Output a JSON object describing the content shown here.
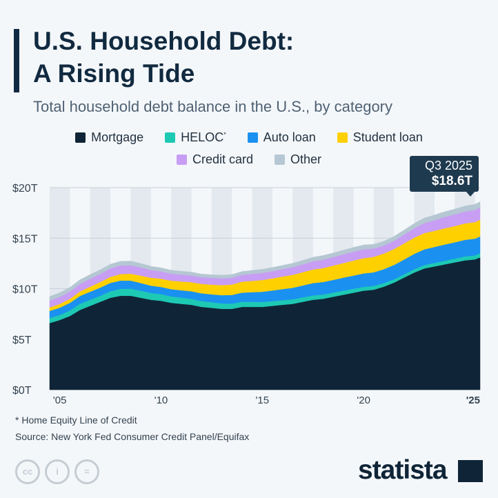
{
  "header": {
    "title_line1": "U.S. Household Debt:",
    "title_line2": "A Rising Tide",
    "subtitle": "Total household debt balance in the U.S., by category"
  },
  "legend": [
    {
      "label": "Mortgage",
      "color": "#0f2537"
    },
    {
      "label": "HELOC",
      "sup": "*",
      "color": "#1ec9b4"
    },
    {
      "label": "Auto loan",
      "color": "#1a91f0"
    },
    {
      "label": "Student loan",
      "color": "#fed000"
    },
    {
      "label": "Credit card",
      "color": "#c89ef4"
    },
    {
      "label": "Other",
      "color": "#b5c7d2"
    }
  ],
  "callout": {
    "period": "Q3 2025",
    "value": "$18.6T"
  },
  "footer": {
    "footnote": "* Home Equity Line of Credit",
    "source": "Source: New York Fed Consumer Credit Panel/Equifax",
    "cc_icons": [
      "cc",
      "i",
      "="
    ],
    "brand": "statista"
  },
  "chart_data": {
    "type": "area",
    "stacked": true,
    "unit": "trillion USD",
    "ylim": [
      0,
      20
    ],
    "yticks": [
      0,
      5,
      10,
      15,
      20
    ],
    "ytick_labels": [
      "$0T",
      "$5T",
      "$10T",
      "$15T",
      "$20T"
    ],
    "xlim": [
      2004.5,
      2025.75
    ],
    "xticks": [
      2005,
      2010,
      2015,
      2020,
      2025
    ],
    "xtick_labels": [
      "'05",
      "'10",
      "'15",
      "'20",
      "'25"
    ],
    "grid": true,
    "legend_position": "top",
    "x": [
      2004.5,
      2005,
      2005.5,
      2006,
      2006.5,
      2007,
      2007.5,
      2008,
      2008.5,
      2009,
      2009.5,
      2010,
      2010.5,
      2011,
      2011.5,
      2012,
      2012.5,
      2013,
      2013.5,
      2014,
      2014.5,
      2015,
      2015.5,
      2016,
      2016.5,
      2017,
      2017.5,
      2018,
      2018.5,
      2019,
      2019.5,
      2020,
      2020.5,
      2021,
      2021.5,
      2022,
      2022.5,
      2023,
      2023.5,
      2024,
      2024.5,
      2025,
      2025.5,
      2025.75
    ],
    "series": [
      {
        "name": "Mortgage",
        "color": "#0f2537",
        "values": [
          6.6,
          6.9,
          7.3,
          7.9,
          8.3,
          8.7,
          9.1,
          9.3,
          9.3,
          9.1,
          8.9,
          8.8,
          8.6,
          8.5,
          8.4,
          8.2,
          8.1,
          8.0,
          8.0,
          8.2,
          8.2,
          8.2,
          8.3,
          8.4,
          8.5,
          8.7,
          8.9,
          9.0,
          9.2,
          9.4,
          9.6,
          9.8,
          9.9,
          10.2,
          10.6,
          11.1,
          11.6,
          12.0,
          12.2,
          12.4,
          12.6,
          12.8,
          12.9,
          13.1
        ]
      },
      {
        "name": "HELOC",
        "color": "#1ec9b4",
        "values": [
          0.5,
          0.5,
          0.55,
          0.6,
          0.6,
          0.6,
          0.65,
          0.68,
          0.7,
          0.7,
          0.68,
          0.66,
          0.64,
          0.62,
          0.6,
          0.58,
          0.56,
          0.54,
          0.52,
          0.51,
          0.5,
          0.49,
          0.47,
          0.46,
          0.45,
          0.44,
          0.43,
          0.42,
          0.41,
          0.4,
          0.39,
          0.38,
          0.37,
          0.35,
          0.33,
          0.32,
          0.33,
          0.34,
          0.35,
          0.36,
          0.37,
          0.39,
          0.4,
          0.41
        ]
      },
      {
        "name": "Auto loan",
        "color": "#1a91f0",
        "values": [
          0.7,
          0.72,
          0.75,
          0.78,
          0.8,
          0.81,
          0.82,
          0.82,
          0.8,
          0.76,
          0.72,
          0.71,
          0.71,
          0.72,
          0.74,
          0.76,
          0.78,
          0.82,
          0.86,
          0.9,
          0.95,
          1.0,
          1.05,
          1.1,
          1.14,
          1.18,
          1.22,
          1.24,
          1.26,
          1.29,
          1.31,
          1.33,
          1.35,
          1.38,
          1.42,
          1.47,
          1.52,
          1.55,
          1.58,
          1.61,
          1.62,
          1.64,
          1.65,
          1.66
        ]
      },
      {
        "name": "Student loan",
        "color": "#fed000",
        "values": [
          0.34,
          0.37,
          0.4,
          0.45,
          0.5,
          0.55,
          0.6,
          0.64,
          0.68,
          0.73,
          0.78,
          0.81,
          0.84,
          0.87,
          0.9,
          0.93,
          0.96,
          0.99,
          1.03,
          1.08,
          1.12,
          1.16,
          1.2,
          1.24,
          1.28,
          1.31,
          1.35,
          1.38,
          1.41,
          1.44,
          1.48,
          1.51,
          1.53,
          1.55,
          1.57,
          1.59,
          1.6,
          1.61,
          1.6,
          1.6,
          1.61,
          1.63,
          1.64,
          1.65
        ]
      },
      {
        "name": "Credit card",
        "color": "#c89ef4",
        "values": [
          0.68,
          0.7,
          0.72,
          0.75,
          0.78,
          0.8,
          0.84,
          0.86,
          0.85,
          0.82,
          0.77,
          0.73,
          0.7,
          0.69,
          0.68,
          0.67,
          0.67,
          0.67,
          0.67,
          0.68,
          0.7,
          0.71,
          0.72,
          0.74,
          0.76,
          0.78,
          0.81,
          0.83,
          0.84,
          0.86,
          0.88,
          0.88,
          0.82,
          0.79,
          0.82,
          0.87,
          0.93,
          0.99,
          1.05,
          1.12,
          1.15,
          1.18,
          1.2,
          1.23
        ]
      },
      {
        "name": "Other",
        "color": "#b5c7d2",
        "values": [
          0.4,
          0.41,
          0.41,
          0.41,
          0.41,
          0.41,
          0.41,
          0.41,
          0.4,
          0.38,
          0.36,
          0.35,
          0.34,
          0.33,
          0.32,
          0.31,
          0.31,
          0.31,
          0.32,
          0.33,
          0.34,
          0.35,
          0.36,
          0.37,
          0.38,
          0.39,
          0.4,
          0.41,
          0.41,
          0.42,
          0.42,
          0.43,
          0.42,
          0.42,
          0.43,
          0.45,
          0.47,
          0.5,
          0.51,
          0.52,
          0.53,
          0.54,
          0.55,
          0.55
        ]
      }
    ]
  }
}
